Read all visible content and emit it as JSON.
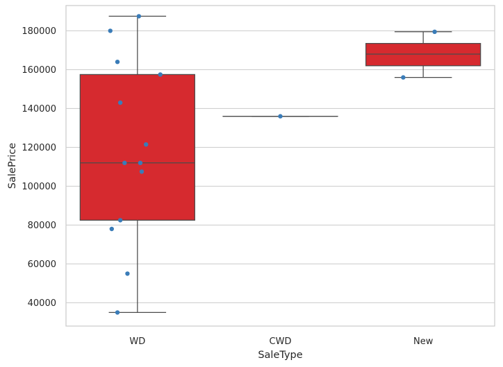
{
  "chart_data": {
    "type": "boxplot",
    "title": "",
    "xlabel": "SaleType",
    "ylabel": "SalePrice",
    "categories": [
      "WD",
      "CWD",
      "New"
    ],
    "ylim": [
      28000,
      193000
    ],
    "yticks": [
      40000,
      60000,
      80000,
      100000,
      120000,
      140000,
      160000,
      180000
    ],
    "grid": true,
    "colors": {
      "box": "#d62a2f",
      "box_edge": "#4a4a4a",
      "point": "#3a7cb8",
      "grid": "#d0d0d0",
      "spine": "#cccccc"
    },
    "boxes": [
      {
        "category": "WD",
        "whisker_low": 35000,
        "q1": 82500,
        "median": 112000,
        "q3": 157500,
        "whisker_high": 187500
      },
      {
        "category": "CWD",
        "whisker_low": 136000,
        "q1": 136000,
        "median": 136000,
        "q3": 136000,
        "whisker_high": 136000
      },
      {
        "category": "New",
        "whisker_low": 156000,
        "q1": 162000,
        "median": 168000,
        "q3": 173500,
        "whisker_high": 179500
      }
    ],
    "points": [
      {
        "category": "WD",
        "jitter": 0.01,
        "value": 187500
      },
      {
        "category": "WD",
        "jitter": -0.19,
        "value": 180000
      },
      {
        "category": "WD",
        "jitter": -0.14,
        "value": 164000
      },
      {
        "category": "WD",
        "jitter": 0.16,
        "value": 157500
      },
      {
        "category": "WD",
        "jitter": -0.12,
        "value": 143000
      },
      {
        "category": "WD",
        "jitter": 0.06,
        "value": 121500
      },
      {
        "category": "WD",
        "jitter": -0.09,
        "value": 112000
      },
      {
        "category": "WD",
        "jitter": 0.02,
        "value": 112000
      },
      {
        "category": "WD",
        "jitter": 0.03,
        "value": 107500
      },
      {
        "category": "WD",
        "jitter": -0.12,
        "value": 82500
      },
      {
        "category": "WD",
        "jitter": -0.18,
        "value": 78000
      },
      {
        "category": "WD",
        "jitter": -0.07,
        "value": 55000
      },
      {
        "category": "WD",
        "jitter": -0.14,
        "value": 35000
      },
      {
        "category": "CWD",
        "jitter": 0.0,
        "value": 136000
      },
      {
        "category": "New",
        "jitter": 0.08,
        "value": 179500
      },
      {
        "category": "New",
        "jitter": -0.14,
        "value": 156000
      }
    ]
  }
}
